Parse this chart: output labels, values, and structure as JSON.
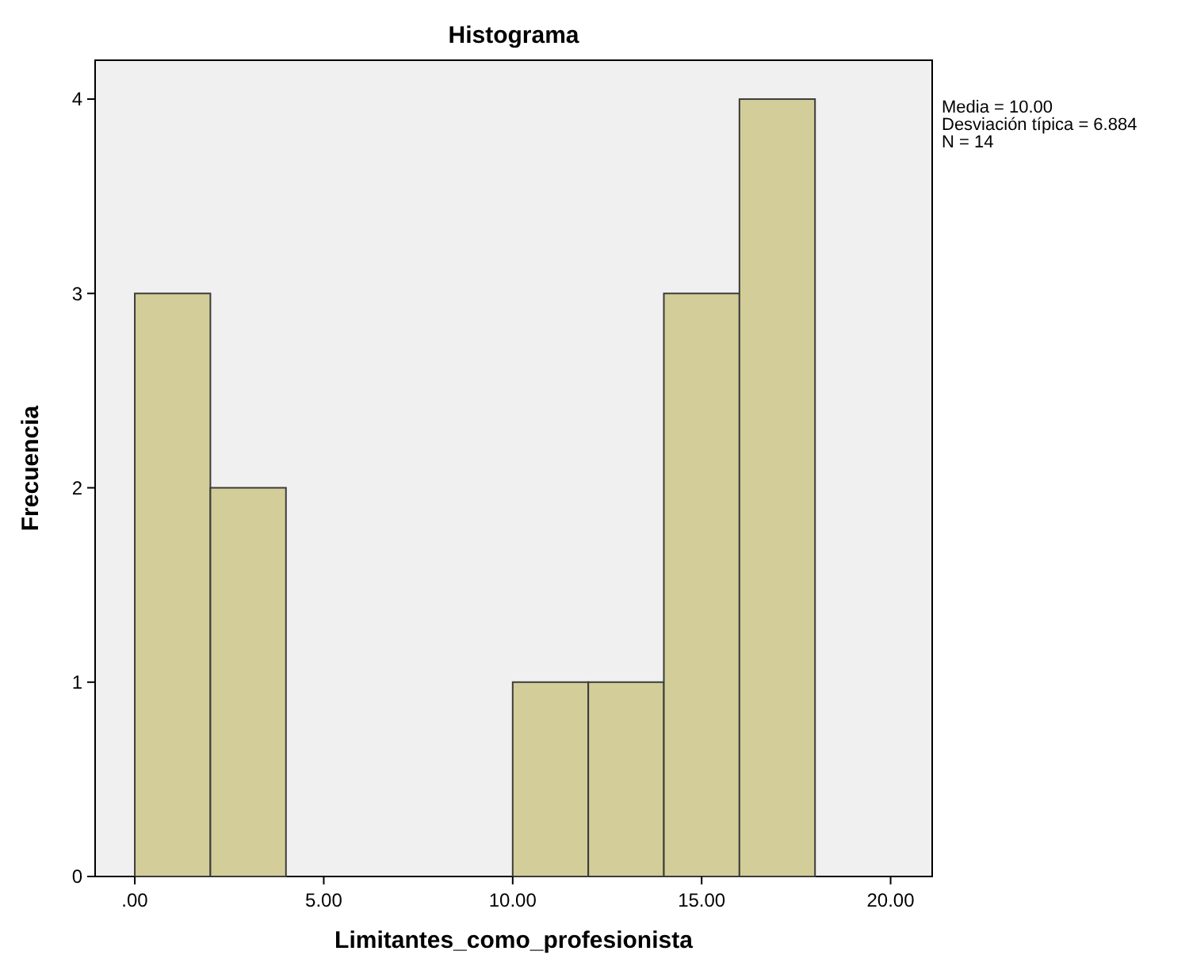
{
  "chart_data": {
    "type": "histogram",
    "title": "Histograma",
    "xlabel": "Limitantes_como_profesionista",
    "ylabel": "Frecuencia",
    "bins": [
      0,
      2,
      4,
      6,
      8,
      10,
      12,
      14,
      16,
      18
    ],
    "values": [
      3,
      2,
      0,
      0,
      0,
      1,
      1,
      3,
      4
    ],
    "color": "#d3ce99",
    "xlim": [
      -1.05,
      21.1
    ],
    "xticks": [
      {
        "value": 0,
        "label": ".00"
      },
      {
        "value": 5,
        "label": "5.00"
      },
      {
        "value": 10,
        "label": "10.00"
      },
      {
        "value": 15,
        "label": "15.00"
      },
      {
        "value": 20,
        "label": "20.00"
      }
    ],
    "ylim": [
      0,
      4.2
    ],
    "yticks": [
      0,
      1,
      2,
      3,
      4
    ],
    "grid": false,
    "annotations": [
      "Media = 10.00",
      "Desviación típica = 6.884",
      "N = 14"
    ]
  }
}
